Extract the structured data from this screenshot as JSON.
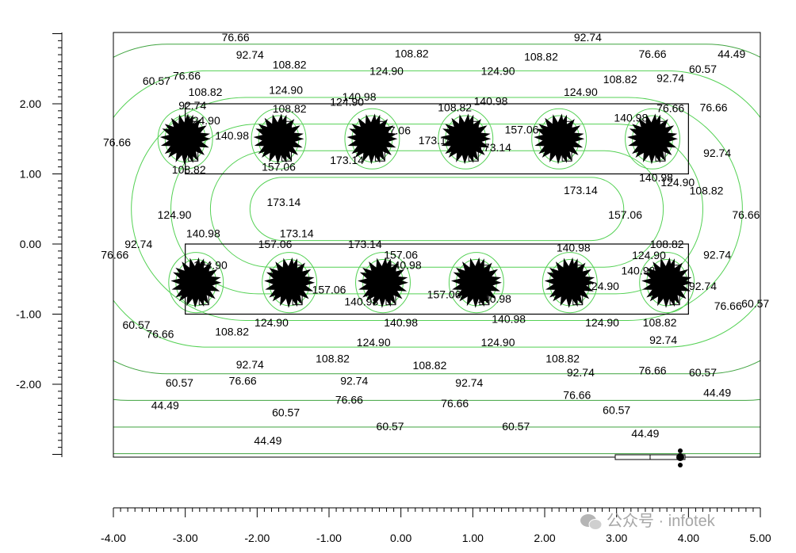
{
  "chart_data": {
    "type": "contour",
    "title": "",
    "xlabel": "",
    "ylabel": "",
    "xlim": [
      -4.0,
      5.0
    ],
    "ylim": [
      -3.0,
      3.0
    ],
    "x_ticks": [
      "-4.00",
      "-3.00",
      "-2.00",
      "-1.00",
      "0.00",
      "1.00",
      "2.00",
      "3.00",
      "4.00",
      "5.00"
    ],
    "y_ticks": [
      "2.00",
      "1.00",
      "0.00",
      "-1.00",
      "-2.00"
    ],
    "contour_levels": [
      "44.49",
      "60.57",
      "76.66",
      "92.74",
      "108.82",
      "124.90",
      "140.98",
      "157.06",
      "173.14"
    ],
    "line_colors": {
      "outer": "#3fa33f",
      "inner": "#54d154"
    },
    "grid": false,
    "luminaire_rows": [
      {
        "y": 1.5,
        "x": [
          -3.0,
          -1.7,
          -0.4,
          0.9,
          2.2,
          3.5
        ]
      },
      {
        "y": -0.55,
        "x": [
          -2.85,
          -1.55,
          -0.25,
          1.05,
          2.35,
          3.7
        ]
      }
    ],
    "fixture_bands": [
      {
        "x": [
          -3.0,
          4.0
        ],
        "y": [
          1.0,
          2.0
        ]
      },
      {
        "x": [
          -3.0,
          4.0
        ],
        "y": [
          -1.0,
          0.0
        ]
      }
    ],
    "labels": [
      {
        "t": "76.66",
        "x": -2.3,
        "y": 2.95
      },
      {
        "t": "92.74",
        "x": -2.1,
        "y": 2.7
      },
      {
        "t": "108.82",
        "x": 0.15,
        "y": 2.72
      },
      {
        "t": "108.82",
        "x": 1.95,
        "y": 2.67
      },
      {
        "t": "92.74",
        "x": 2.6,
        "y": 2.95
      },
      {
        "t": "76.66",
        "x": 3.5,
        "y": 2.71
      },
      {
        "t": "44.49",
        "x": 4.6,
        "y": 2.71
      },
      {
        "t": "60.57",
        "x": 4.2,
        "y": 2.5
      },
      {
        "t": "108.82",
        "x": -1.55,
        "y": 2.56
      },
      {
        "t": "124.90",
        "x": -0.2,
        "y": 2.47
      },
      {
        "t": "124.90",
        "x": 1.35,
        "y": 2.47
      },
      {
        "t": "108.82",
        "x": 3.05,
        "y": 2.35
      },
      {
        "t": "92.74",
        "x": 3.75,
        "y": 2.37
      },
      {
        "t": "60.57",
        "x": -3.4,
        "y": 2.33
      },
      {
        "t": "76.66",
        "x": -2.98,
        "y": 2.4
      },
      {
        "t": "108.82",
        "x": -2.72,
        "y": 2.17
      },
      {
        "t": "124.90",
        "x": -1.6,
        "y": 2.2
      },
      {
        "t": "124.90",
        "x": 2.5,
        "y": 2.17
      },
      {
        "t": "124.90",
        "x": -0.75,
        "y": 2.03
      },
      {
        "t": "140.98",
        "x": -0.58,
        "y": 2.1
      },
      {
        "t": "108.82",
        "x": 0.75,
        "y": 1.95
      },
      {
        "t": "140.98",
        "x": 1.25,
        "y": 2.04
      },
      {
        "t": "92.74",
        "x": -2.9,
        "y": 1.98
      },
      {
        "t": "108.82",
        "x": -1.55,
        "y": 1.93
      },
      {
        "t": "76.66",
        "x": 3.75,
        "y": 1.94
      },
      {
        "t": "76.66",
        "x": 4.35,
        "y": 1.95
      },
      {
        "t": "124.90",
        "x": -2.75,
        "y": 1.76
      },
      {
        "t": "140.98",
        "x": 3.2,
        "y": 1.8
      },
      {
        "t": "157.06",
        "x": -0.1,
        "y": 1.62
      },
      {
        "t": "173.14",
        "x": 0.48,
        "y": 1.48
      },
      {
        "t": "140.98",
        "x": -2.35,
        "y": 1.55
      },
      {
        "t": "173.14",
        "x": 1.3,
        "y": 1.38
      },
      {
        "t": "157.06",
        "x": 1.68,
        "y": 1.63
      },
      {
        "t": "76.66",
        "x": -3.95,
        "y": 1.45
      },
      {
        "t": "92.74",
        "x": 4.4,
        "y": 1.3
      },
      {
        "t": "173.14",
        "x": -0.75,
        "y": 1.2
      },
      {
        "t": "108.82",
        "x": -2.95,
        "y": 1.06
      },
      {
        "t": "157.06",
        "x": -1.7,
        "y": 1.1
      },
      {
        "t": "140.98",
        "x": 3.55,
        "y": 0.95
      },
      {
        "t": "124.90",
        "x": 3.85,
        "y": 0.88
      },
      {
        "t": "108.82",
        "x": 4.25,
        "y": 0.76
      },
      {
        "t": "173.14",
        "x": 2.5,
        "y": 0.77
      },
      {
        "t": "173.14",
        "x": -1.63,
        "y": 0.6
      },
      {
        "t": "124.90",
        "x": -3.15,
        "y": 0.42
      },
      {
        "t": "157.06",
        "x": 3.12,
        "y": 0.42
      },
      {
        "t": "76.66",
        "x": 4.8,
        "y": 0.42
      },
      {
        "t": "140.98",
        "x": -2.75,
        "y": 0.15
      },
      {
        "t": "173.14",
        "x": -1.45,
        "y": 0.15
      },
      {
        "t": "92.74",
        "x": -3.65,
        "y": 0.0
      },
      {
        "t": "157.06",
        "x": -1.75,
        "y": 0.0
      },
      {
        "t": "173.14",
        "x": -0.5,
        "y": 0.0
      },
      {
        "t": "108.82",
        "x": 3.7,
        "y": 0.0
      },
      {
        "t": "76.66",
        "x": -3.98,
        "y": -0.15
      },
      {
        "t": "92.74",
        "x": 4.4,
        "y": -0.15
      },
      {
        "t": "157.06",
        "x": 0.0,
        "y": -0.15
      },
      {
        "t": "140.98",
        "x": 2.4,
        "y": -0.05
      },
      {
        "t": "124.90",
        "x": 3.45,
        "y": -0.16
      },
      {
        "t": "140.98",
        "x": 0.05,
        "y": -0.3
      },
      {
        "t": "124.90",
        "x": -2.65,
        "y": -0.3
      },
      {
        "t": "140.98",
        "x": 3.3,
        "y": -0.38
      },
      {
        "t": "157.06",
        "x": -1.0,
        "y": -0.65
      },
      {
        "t": "140.98",
        "x": -0.55,
        "y": -0.82
      },
      {
        "t": "157.06",
        "x": 0.6,
        "y": -0.72
      },
      {
        "t": "140.98",
        "x": 1.3,
        "y": -0.78
      },
      {
        "t": "92.74",
        "x": 4.2,
        "y": -0.6
      },
      {
        "t": "76.66",
        "x": 4.55,
        "y": -0.88
      },
      {
        "t": "60.57",
        "x": 4.93,
        "y": -0.85
      },
      {
        "t": "124.90",
        "x": 2.8,
        "y": -0.6
      },
      {
        "t": "60.57",
        "x": -3.68,
        "y": -1.15
      },
      {
        "t": "124.90",
        "x": -1.8,
        "y": -1.12
      },
      {
        "t": "140.98",
        "x": 0.0,
        "y": -1.12
      },
      {
        "t": "140.98",
        "x": 1.5,
        "y": -1.07
      },
      {
        "t": "124.90",
        "x": 2.8,
        "y": -1.12
      },
      {
        "t": "108.82",
        "x": 3.6,
        "y": -1.12
      },
      {
        "t": "76.66",
        "x": -3.35,
        "y": -1.28
      },
      {
        "t": "108.82",
        "x": -2.35,
        "y": -1.25
      },
      {
        "t": "92.74",
        "x": 3.65,
        "y": -1.37
      },
      {
        "t": "124.90",
        "x": -0.38,
        "y": -1.4
      },
      {
        "t": "124.90",
        "x": 1.35,
        "y": -1.4
      },
      {
        "t": "108.82",
        "x": -0.95,
        "y": -1.63
      },
      {
        "t": "108.82",
        "x": 0.4,
        "y": -1.73
      },
      {
        "t": "108.82",
        "x": 2.25,
        "y": -1.63
      },
      {
        "t": "92.74",
        "x": -2.1,
        "y": -1.72
      },
      {
        "t": "76.66",
        "x": 3.5,
        "y": -1.8
      },
      {
        "t": "60.57",
        "x": 4.2,
        "y": -1.83
      },
      {
        "t": "92.74",
        "x": 2.5,
        "y": -1.83
      },
      {
        "t": "92.74",
        "x": -0.65,
        "y": -1.95
      },
      {
        "t": "92.74",
        "x": 0.95,
        "y": -1.98
      },
      {
        "t": "60.57",
        "x": -3.08,
        "y": -1.98
      },
      {
        "t": "76.66",
        "x": -2.2,
        "y": -1.95
      },
      {
        "t": "44.49",
        "x": 4.4,
        "y": -2.12
      },
      {
        "t": "76.66",
        "x": -0.72,
        "y": -2.22
      },
      {
        "t": "76.66",
        "x": 0.75,
        "y": -2.27
      },
      {
        "t": "76.66",
        "x": 2.45,
        "y": -2.15
      },
      {
        "t": "44.49",
        "x": -3.28,
        "y": -2.3
      },
      {
        "t": "60.57",
        "x": -1.6,
        "y": -2.4
      },
      {
        "t": "60.57",
        "x": 3.0,
        "y": -2.37
      },
      {
        "t": "60.57",
        "x": -0.15,
        "y": -2.6
      },
      {
        "t": "60.57",
        "x": 1.6,
        "y": -2.6
      },
      {
        "t": "44.49",
        "x": 3.4,
        "y": -2.7
      },
      {
        "t": "44.49",
        "x": -1.85,
        "y": -2.8
      }
    ]
  },
  "watermark": {
    "text": "公众号 · infotek"
  }
}
